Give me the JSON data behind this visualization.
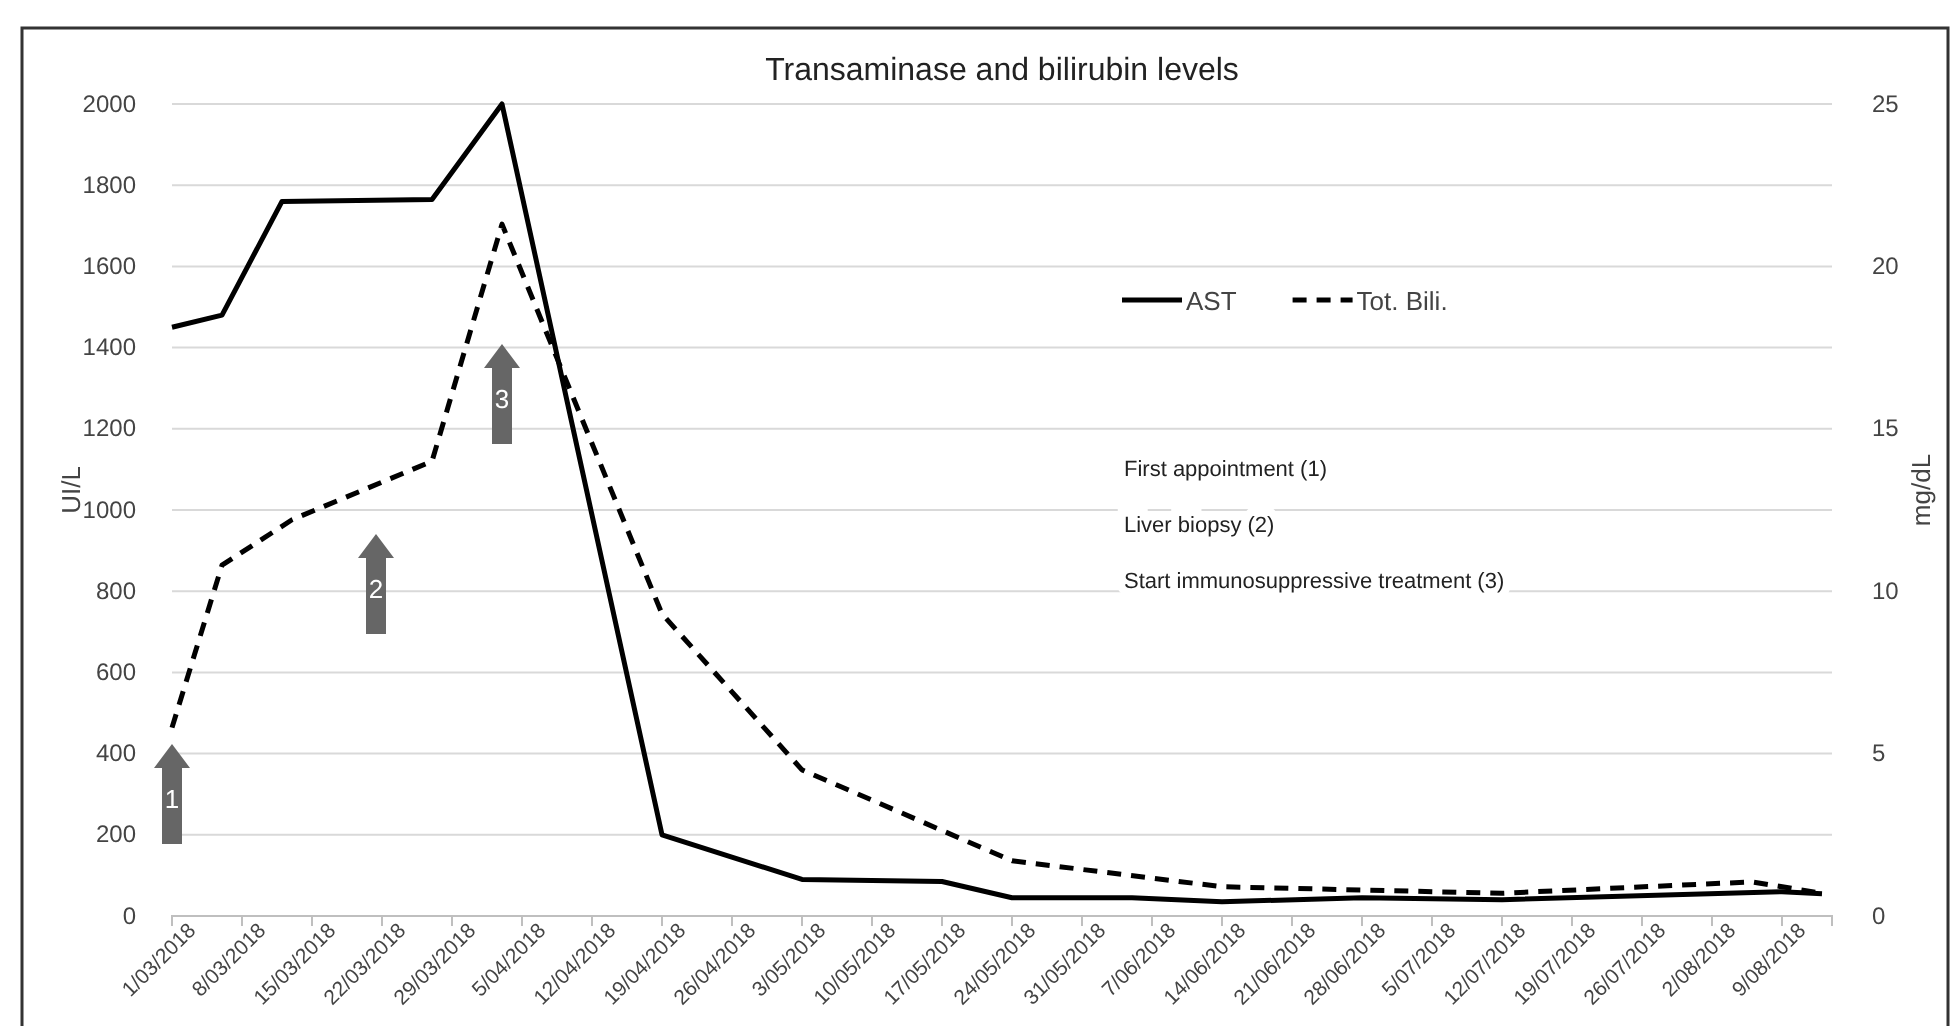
{
  "chart_data": {
    "type": "line",
    "title": "Transaminase and bilirubin levels",
    "ylabel": "UI/L",
    "y2label": "mg/dL",
    "xlim": [
      "2018-03-01",
      "2018-08-14"
    ],
    "xticks": [
      {
        "value": "2018-03-01",
        "label": "1/03/2018"
      },
      {
        "value": "2018-03-08",
        "label": "8/03/2018"
      },
      {
        "value": "2018-03-15",
        "label": "15/03/2018"
      },
      {
        "value": "2018-03-22",
        "label": "22/03/2018"
      },
      {
        "value": "2018-03-29",
        "label": "29/03/2018"
      },
      {
        "value": "2018-04-05",
        "label": "5/04/2018"
      },
      {
        "value": "2018-04-12",
        "label": "12/04/2018"
      },
      {
        "value": "2018-04-19",
        "label": "19/04/2018"
      },
      {
        "value": "2018-04-26",
        "label": "26/04/2018"
      },
      {
        "value": "2018-05-03",
        "label": "3/05/2018"
      },
      {
        "value": "2018-05-10",
        "label": "10/05/2018"
      },
      {
        "value": "2018-05-17",
        "label": "17/05/2018"
      },
      {
        "value": "2018-05-24",
        "label": "24/05/2018"
      },
      {
        "value": "2018-05-31",
        "label": "31/05/2018"
      },
      {
        "value": "2018-06-07",
        "label": "7/06/2018"
      },
      {
        "value": "2018-06-14",
        "label": "14/06/2018"
      },
      {
        "value": "2018-06-21",
        "label": "21/06/2018"
      },
      {
        "value": "2018-06-28",
        "label": "28/06/2018"
      },
      {
        "value": "2018-07-05",
        "label": "5/07/2018"
      },
      {
        "value": "2018-07-12",
        "label": "12/07/2018"
      },
      {
        "value": "2018-07-19",
        "label": "19/07/2018"
      },
      {
        "value": "2018-07-26",
        "label": "26/07/2018"
      },
      {
        "value": "2018-08-02",
        "label": "2/08/2018"
      },
      {
        "value": "2018-08-09",
        "label": "9/08/2018"
      }
    ],
    "ylim": [
      0,
      2000
    ],
    "yticks": [
      0,
      200,
      400,
      600,
      800,
      1000,
      1200,
      1400,
      1600,
      1800,
      2000
    ],
    "y2lim": [
      0,
      25
    ],
    "y2ticks": [
      0,
      5,
      10,
      15,
      20,
      25
    ],
    "grid": "y",
    "legend": "top right",
    "marker": "none",
    "series": [
      {
        "name": "AST",
        "color": "#000000",
        "line_style": "solid",
        "x": [
          "2018-03-01",
          "2018-03-06",
          "2018-03-12",
          "2018-03-27",
          "2018-04-03",
          "2018-04-19",
          "2018-05-03",
          "2018-05-17",
          "2018-05-24",
          "2018-06-05",
          "2018-06-14",
          "2018-06-28",
          "2018-07-12",
          "2018-08-09",
          "2018-08-13"
        ],
        "values": [
          1450,
          1480,
          1760,
          1765,
          2000,
          200,
          90,
          85,
          45,
          45,
          35,
          45,
          40,
          60,
          55
        ]
      },
      {
        "name": "Tot. Bili.",
        "color": "#000000",
        "line_style": "dashed",
        "axis": "y2",
        "x": [
          "2018-03-01",
          "2018-03-06",
          "2018-03-13",
          "2018-03-27",
          "2018-04-03",
          "2018-04-19",
          "2018-05-03",
          "2018-05-24",
          "2018-06-14",
          "2018-07-12",
          "2018-08-06",
          "2018-08-13"
        ],
        "values": [
          5.8,
          10.8,
          12.2,
          14.0,
          21.3,
          9.3,
          4.5,
          1.7,
          0.9,
          0.7,
          1.05,
          0.7
        ]
      }
    ],
    "annotations": [
      "1",
      "2",
      "3",
      "First appointment (1)",
      "Liver biopsy (2)",
      "Start immunosuppressive treatment (3)"
    ]
  }
}
